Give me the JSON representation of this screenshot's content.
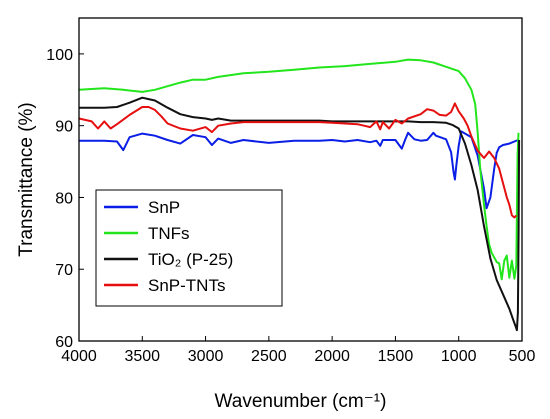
{
  "chart_data": {
    "type": "line",
    "title": "",
    "xlabel": "Wavenumber (cm⁻¹)",
    "ylabel": "Transmittance (%)",
    "xlim": [
      4000,
      500
    ],
    "ylim": [
      60,
      105
    ],
    "x_reversed": true,
    "grid": false,
    "legend_position": "bottom-left",
    "x_ticks": [
      4000,
      3500,
      3000,
      2500,
      2000,
      1500,
      1000,
      500
    ],
    "x_tick_labels": [
      "4000",
      "3500",
      "3000",
      "2500",
      "2000",
      "1500",
      "1000",
      "500"
    ],
    "y_ticks": [
      60,
      70,
      80,
      90,
      100
    ],
    "y_tick_labels": [
      "60",
      "70",
      "80",
      "90",
      "100"
    ],
    "series": [
      {
        "name": "SnP",
        "color": "#0a1ee6",
        "points": [
          [
            4000,
            87.9
          ],
          [
            3800,
            87.9
          ],
          [
            3700,
            87.8
          ],
          [
            3650,
            86.6
          ],
          [
            3600,
            88.4
          ],
          [
            3500,
            88.9
          ],
          [
            3400,
            88.6
          ],
          [
            3300,
            88.0
          ],
          [
            3200,
            87.5
          ],
          [
            3100,
            88.7
          ],
          [
            3000,
            88.4
          ],
          [
            2950,
            87.3
          ],
          [
            2900,
            88.2
          ],
          [
            2800,
            87.6
          ],
          [
            2700,
            88.0
          ],
          [
            2500,
            87.6
          ],
          [
            2300,
            87.9
          ],
          [
            2100,
            87.9
          ],
          [
            2000,
            88.0
          ],
          [
            1900,
            87.8
          ],
          [
            1800,
            88.0
          ],
          [
            1700,
            87.7
          ],
          [
            1650,
            87.9
          ],
          [
            1620,
            87.2
          ],
          [
            1600,
            88.0
          ],
          [
            1500,
            88.0
          ],
          [
            1450,
            86.8
          ],
          [
            1420,
            88.2
          ],
          [
            1400,
            89.0
          ],
          [
            1350,
            88.1
          ],
          [
            1300,
            87.9
          ],
          [
            1250,
            88.0
          ],
          [
            1200,
            89.0
          ],
          [
            1180,
            88.6
          ],
          [
            1100,
            88.1
          ],
          [
            1060,
            86.3
          ],
          [
            1040,
            83.4
          ],
          [
            1030,
            82.5
          ],
          [
            1020,
            84.3
          ],
          [
            1000,
            87.2
          ],
          [
            980,
            89.2
          ],
          [
            900,
            88.4
          ],
          [
            850,
            85.8
          ],
          [
            800,
            81.2
          ],
          [
            780,
            78.5
          ],
          [
            750,
            80.0
          ],
          [
            720,
            84.0
          ],
          [
            700,
            86.2
          ],
          [
            680,
            87.0
          ],
          [
            650,
            87.3
          ],
          [
            600,
            87.5
          ],
          [
            560,
            87.8
          ],
          [
            530,
            88.0
          ]
        ]
      },
      {
        "name": "TNFs",
        "color": "#22e61b",
        "points": [
          [
            4000,
            95.0
          ],
          [
            3800,
            95.2
          ],
          [
            3650,
            95.0
          ],
          [
            3500,
            94.7
          ],
          [
            3400,
            95.0
          ],
          [
            3300,
            95.5
          ],
          [
            3200,
            96.0
          ],
          [
            3100,
            96.4
          ],
          [
            3000,
            96.4
          ],
          [
            2900,
            96.8
          ],
          [
            2700,
            97.3
          ],
          [
            2500,
            97.5
          ],
          [
            2300,
            97.8
          ],
          [
            2100,
            98.1
          ],
          [
            1900,
            98.3
          ],
          [
            1700,
            98.6
          ],
          [
            1500,
            98.9
          ],
          [
            1400,
            99.2
          ],
          [
            1300,
            99.1
          ],
          [
            1200,
            98.8
          ],
          [
            1100,
            98.2
          ],
          [
            1000,
            97.6
          ],
          [
            950,
            96.6
          ],
          [
            900,
            95.0
          ],
          [
            870,
            93.0
          ],
          [
            850,
            89.0
          ],
          [
            830,
            84.0
          ],
          [
            800,
            79.0
          ],
          [
            780,
            76.0
          ],
          [
            760,
            73.5
          ],
          [
            740,
            72.3
          ],
          [
            700,
            71.0
          ],
          [
            680,
            70.8
          ],
          [
            660,
            68.6
          ],
          [
            640,
            71.2
          ],
          [
            620,
            71.9
          ],
          [
            600,
            68.8
          ],
          [
            580,
            71.2
          ],
          [
            560,
            68.7
          ],
          [
            545,
            70.5
          ],
          [
            535,
            86.0
          ],
          [
            528,
            89.0
          ]
        ]
      },
      {
        "name": "TiO₂ (P-25)",
        "color": "#111111",
        "points": [
          [
            4000,
            92.5
          ],
          [
            3900,
            92.5
          ],
          [
            3800,
            92.5
          ],
          [
            3700,
            92.6
          ],
          [
            3600,
            93.2
          ],
          [
            3500,
            93.9
          ],
          [
            3450,
            93.7
          ],
          [
            3400,
            93.5
          ],
          [
            3300,
            92.5
          ],
          [
            3200,
            91.6
          ],
          [
            3100,
            91.2
          ],
          [
            3000,
            91.0
          ],
          [
            2950,
            90.8
          ],
          [
            2900,
            91.0
          ],
          [
            2800,
            90.7
          ],
          [
            2700,
            90.7
          ],
          [
            2500,
            90.7
          ],
          [
            2300,
            90.7
          ],
          [
            2100,
            90.7
          ],
          [
            2000,
            90.6
          ],
          [
            1800,
            90.6
          ],
          [
            1600,
            90.6
          ],
          [
            1400,
            90.6
          ],
          [
            1300,
            90.5
          ],
          [
            1200,
            90.5
          ],
          [
            1100,
            90.4
          ],
          [
            1050,
            90.1
          ],
          [
            1000,
            89.6
          ],
          [
            950,
            87.5
          ],
          [
            900,
            84.5
          ],
          [
            850,
            81.0
          ],
          [
            800,
            76.0
          ],
          [
            750,
            71.5
          ],
          [
            700,
            68.5
          ],
          [
            650,
            66.5
          ],
          [
            600,
            64.5
          ],
          [
            570,
            63.0
          ],
          [
            550,
            62.0
          ],
          [
            540,
            61.5
          ],
          [
            532,
            64.0
          ],
          [
            527,
            75.0
          ],
          [
            523,
            88.0
          ]
        ]
      },
      {
        "name": "SnP-TNTs",
        "color": "#e60f0f",
        "points": [
          [
            4000,
            91.0
          ],
          [
            3900,
            90.6
          ],
          [
            3850,
            89.6
          ],
          [
            3800,
            90.6
          ],
          [
            3750,
            89.6
          ],
          [
            3700,
            90.2
          ],
          [
            3600,
            91.5
          ],
          [
            3500,
            92.6
          ],
          [
            3450,
            92.6
          ],
          [
            3400,
            92.2
          ],
          [
            3350,
            91.3
          ],
          [
            3300,
            90.3
          ],
          [
            3200,
            89.6
          ],
          [
            3100,
            89.3
          ],
          [
            3000,
            89.8
          ],
          [
            2950,
            89.1
          ],
          [
            2900,
            90.0
          ],
          [
            2800,
            90.3
          ],
          [
            2700,
            90.5
          ],
          [
            2600,
            90.5
          ],
          [
            2500,
            90.5
          ],
          [
            2300,
            90.5
          ],
          [
            2100,
            90.5
          ],
          [
            2000,
            90.4
          ],
          [
            1900,
            90.3
          ],
          [
            1800,
            90.2
          ],
          [
            1700,
            89.8
          ],
          [
            1650,
            90.6
          ],
          [
            1620,
            89.5
          ],
          [
            1600,
            90.5
          ],
          [
            1550,
            89.6
          ],
          [
            1500,
            90.8
          ],
          [
            1450,
            90.3
          ],
          [
            1400,
            91.0
          ],
          [
            1300,
            91.6
          ],
          [
            1250,
            92.3
          ],
          [
            1200,
            92.1
          ],
          [
            1150,
            91.5
          ],
          [
            1100,
            91.4
          ],
          [
            1060,
            91.9
          ],
          [
            1030,
            93.1
          ],
          [
            1000,
            92.0
          ],
          [
            960,
            91.0
          ],
          [
            930,
            90.0
          ],
          [
            900,
            88.5
          ],
          [
            850,
            86.5
          ],
          [
            800,
            85.5
          ],
          [
            760,
            86.4
          ],
          [
            720,
            85.5
          ],
          [
            680,
            84.0
          ],
          [
            650,
            82.0
          ],
          [
            620,
            80.0
          ],
          [
            600,
            79.0
          ],
          [
            580,
            77.5
          ],
          [
            560,
            77.2
          ],
          [
            545,
            77.5
          ]
        ]
      }
    ]
  }
}
